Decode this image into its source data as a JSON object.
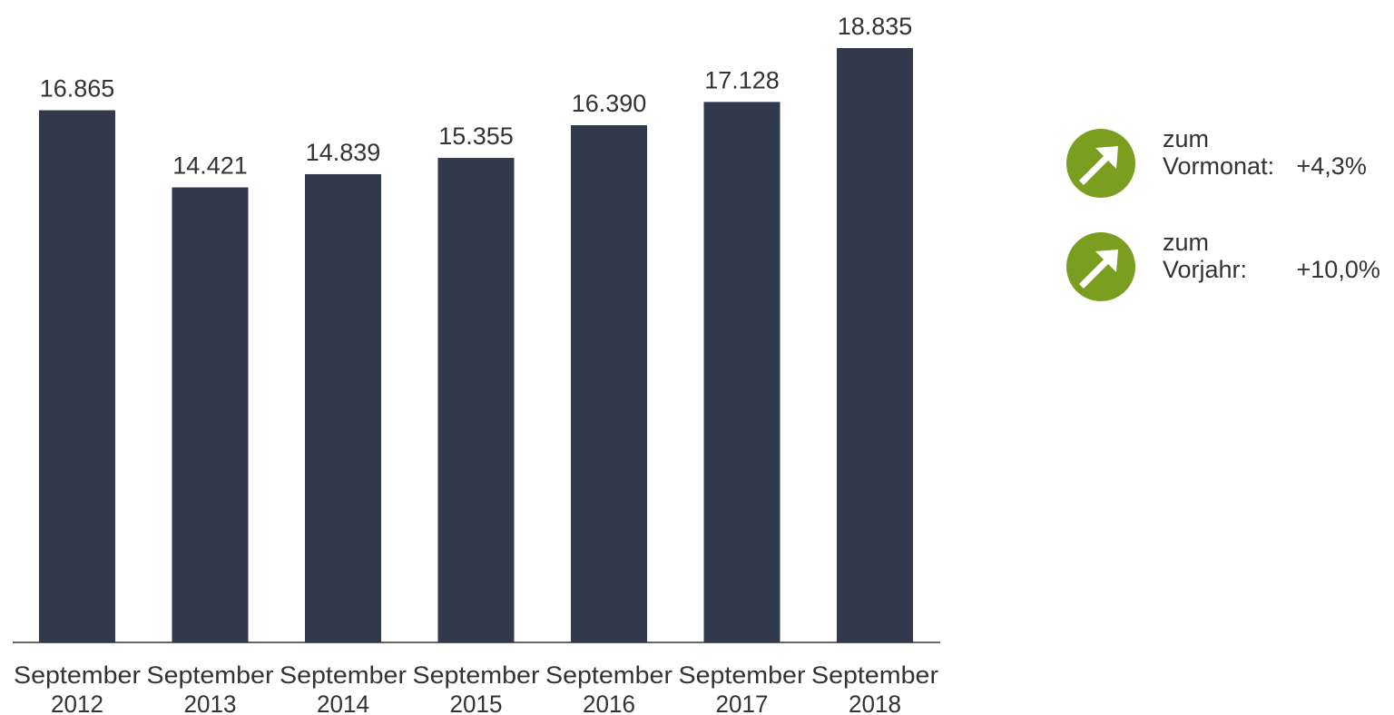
{
  "chart_data": {
    "type": "bar",
    "categories": [
      [
        "September",
        "2012"
      ],
      [
        "September",
        "2013"
      ],
      [
        "September",
        "2014"
      ],
      [
        "September",
        "2015"
      ],
      [
        "September",
        "2016"
      ],
      [
        "September",
        "2017"
      ],
      [
        "September",
        "2018"
      ]
    ],
    "values": [
      16865,
      14421,
      14839,
      15355,
      16390,
      17128,
      18835
    ],
    "value_labels": [
      "16.865",
      "14.421",
      "14.839",
      "15.355",
      "16.390",
      "17.128",
      "18.835"
    ],
    "ylim": [
      0,
      18835
    ],
    "grid": false,
    "bar_color": "#313a4d",
    "axis_color": "#333333"
  },
  "stats": [
    {
      "line1": "zum",
      "name": "Vormonat:",
      "value": "+4,3%",
      "icon": "arrow-up-right-icon",
      "color": "#7a9e1f"
    },
    {
      "line1": "zum",
      "name": "Vorjahr:",
      "value": "+10,0%",
      "icon": "arrow-up-right-icon",
      "color": "#7a9e1f"
    }
  ]
}
